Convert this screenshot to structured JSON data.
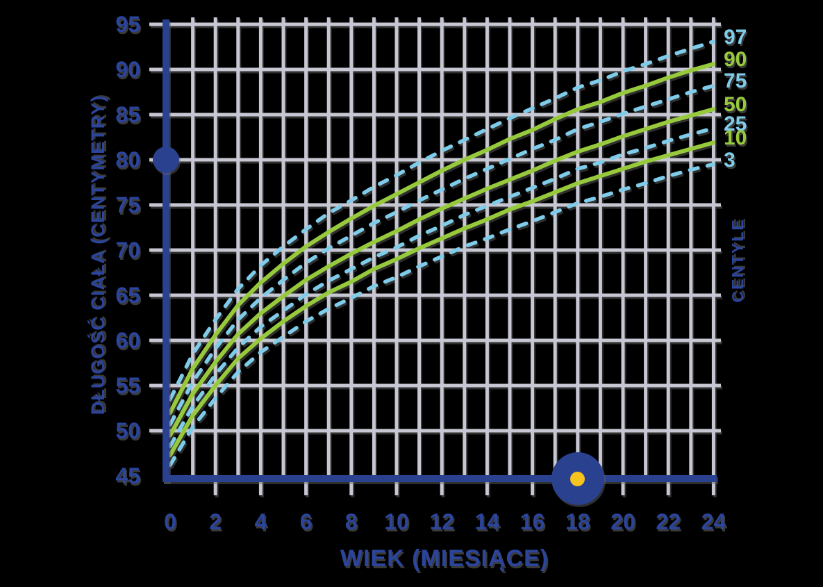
{
  "colors": {
    "axis_blue": "#2a4190",
    "label_blue": "#2b449c",
    "grid_gray": "#c6c7d2",
    "centile_green": "#97c93c",
    "centile_light_blue": "#7fccea",
    "marker_yellow": "#f6c41d",
    "background": "#000000"
  },
  "y_axis": {
    "title": "DŁUGOŚĆ CIAŁA (CENTYMETRY)",
    "ticks": [
      95,
      90,
      85,
      80,
      75,
      70,
      65,
      60,
      55,
      50,
      45
    ]
  },
  "x_axis": {
    "title": "WIEK (MIESIĄCE)",
    "ticks": [
      0,
      2,
      4,
      6,
      8,
      10,
      12,
      14,
      16,
      18,
      20,
      22,
      24
    ]
  },
  "right_axis": {
    "title": "CENTYLE"
  },
  "sliders": {
    "length": {
      "value_cm": 80
    },
    "age": {
      "value_months": 18
    }
  },
  "chart_data": {
    "type": "line",
    "title": "",
    "xlabel": "WIEK (MIESIĄCE)",
    "ylabel": "DŁUGOŚĆ CIAŁA (CENTYMETRY)",
    "xlim": [
      0,
      24
    ],
    "ylim": [
      45,
      95
    ],
    "x_tick_step": 2,
    "y_tick_step": 5,
    "grid": true,
    "legend_position": "right",
    "legend_title": "CENTYLE",
    "x": [
      0,
      1,
      2,
      3,
      4,
      5,
      6,
      7,
      8,
      9,
      10,
      11,
      12,
      13,
      14,
      15,
      16,
      17,
      18,
      19,
      20,
      21,
      22,
      23,
      24
    ],
    "series": [
      {
        "name": "97",
        "style": "dashed",
        "color": "#7fccea",
        "values": [
          53.5,
          58.5,
          62.3,
          65.7,
          68.3,
          70.4,
          72.3,
          74.1,
          75.5,
          77.0,
          78.3,
          79.7,
          81.0,
          82.2,
          83.4,
          84.6,
          85.7,
          86.8,
          88.0,
          88.8,
          89.8,
          90.6,
          91.5,
          92.3,
          93.1
        ]
      },
      {
        "name": "90",
        "style": "solid",
        "color": "#97c93c",
        "values": [
          52.0,
          56.9,
          60.6,
          63.9,
          66.4,
          68.5,
          70.4,
          72.0,
          73.5,
          74.9,
          76.2,
          77.5,
          78.8,
          80.0,
          81.1,
          82.3,
          83.3,
          84.5,
          85.6,
          86.4,
          87.4,
          88.2,
          89.1,
          89.9,
          90.6
        ]
      },
      {
        "name": "75",
        "style": "dashed",
        "color": "#7fccea",
        "values": [
          50.7,
          55.4,
          59.1,
          62.3,
          64.7,
          66.7,
          68.6,
          70.2,
          71.6,
          73.0,
          74.2,
          75.5,
          76.7,
          77.9,
          79.0,
          80.1,
          81.2,
          82.2,
          83.4,
          84.2,
          85.1,
          85.9,
          86.7,
          87.5,
          88.2
        ]
      },
      {
        "name": "50",
        "style": "solid",
        "color": "#97c93c",
        "values": [
          49.5,
          54.1,
          57.6,
          60.7,
          63.0,
          64.9,
          66.7,
          68.2,
          69.6,
          70.9,
          72.1,
          73.4,
          74.6,
          75.7,
          76.8,
          77.8,
          78.8,
          79.9,
          80.9,
          81.7,
          82.6,
          83.4,
          84.2,
          84.9,
          85.6
        ]
      },
      {
        "name": "25",
        "style": "dashed",
        "color": "#7fccea",
        "values": [
          48.3,
          52.7,
          56.2,
          59.2,
          61.5,
          63.3,
          65.1,
          66.6,
          67.9,
          69.2,
          70.3,
          71.6,
          72.7,
          73.9,
          74.9,
          75.9,
          76.9,
          77.9,
          79.0,
          79.7,
          80.6,
          81.3,
          82.1,
          82.8,
          83.5
        ]
      },
      {
        "name": "10",
        "style": "solid",
        "color": "#97c93c",
        "values": [
          47.3,
          51.7,
          55.0,
          58.0,
          60.2,
          62.1,
          63.8,
          65.3,
          66.5,
          67.9,
          69.0,
          70.2,
          71.3,
          72.4,
          73.4,
          74.5,
          75.4,
          76.4,
          77.4,
          78.2,
          79.0,
          79.8,
          80.5,
          81.2,
          81.9
        ]
      },
      {
        "name": "3",
        "style": "dashed",
        "color": "#7fccea",
        "values": [
          46.2,
          50.4,
          53.6,
          56.5,
          58.7,
          60.4,
          62.1,
          63.5,
          64.7,
          66.0,
          67.0,
          68.2,
          69.3,
          70.4,
          71.3,
          72.3,
          73.2,
          74.2,
          75.2,
          75.9,
          76.7,
          77.4,
          78.2,
          78.9,
          79.5
        ]
      }
    ]
  }
}
